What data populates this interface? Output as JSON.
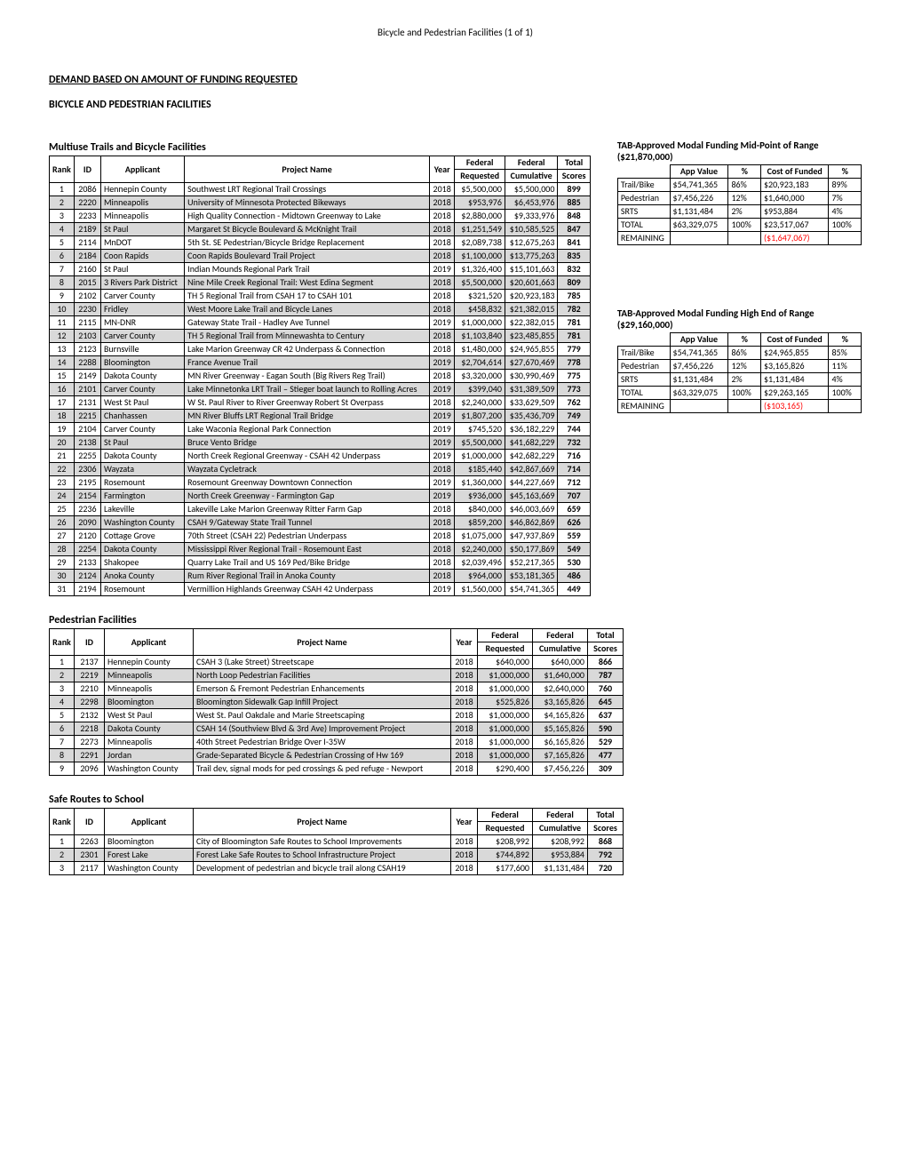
{
  "header": "Bicycle and Pedestrian Facilities (1 of 1)",
  "section_title": "DEMAND BASED ON AMOUNT OF FUNDING REQUESTED",
  "sub_title": "BICYCLE AND PEDESTRIAN FACILITIES",
  "columns": {
    "rank": "Rank",
    "id": "ID",
    "applicant": "Applicant",
    "project": "Project Name",
    "year": "Year",
    "fed_req": "Federal",
    "fed_req2": "Requested",
    "fed_cum": "Federal",
    "fed_cum2": "Cumulative",
    "scores": "Total",
    "scores2": "Scores"
  },
  "tables": {
    "multiuse": {
      "caption": "Multiuse Trails and Bicycle Facilities",
      "rows": [
        [
          "1",
          "2086",
          "Hennepin County",
          "Southwest LRT Regional Trail Crossings",
          "2018",
          "$5,500,000",
          "$5,500,000",
          "899"
        ],
        [
          "2",
          "2220",
          "Minneapolis",
          "University of Minnesota Protected Bikeways",
          "2018",
          "$953,976",
          "$6,453,976",
          "885"
        ],
        [
          "3",
          "2233",
          "Minneapolis",
          "High Quality Connection - Midtown Greenway to Lake",
          "2018",
          "$2,880,000",
          "$9,333,976",
          "848"
        ],
        [
          "4",
          "2189",
          "St Paul",
          "Margaret St Bicycle Boulevard & McKnight Trail",
          "2018",
          "$1,251,549",
          "$10,585,525",
          "847"
        ],
        [
          "5",
          "2114",
          "MnDOT",
          "5th St. SE Pedestrian/Bicycle Bridge Replacement",
          "2018",
          "$2,089,738",
          "$12,675,263",
          "841"
        ],
        [
          "6",
          "2184",
          "Coon Rapids",
          "Coon Rapids Boulevard Trail Project",
          "2018",
          "$1,100,000",
          "$13,775,263",
          "835"
        ],
        [
          "7",
          "2160",
          "St Paul",
          "Indian Mounds Regional Park Trail",
          "2019",
          "$1,326,400",
          "$15,101,663",
          "832"
        ],
        [
          "8",
          "2015",
          "3 Rivers Park District",
          "Nine Mile Creek Regional Trail: West Edina Segment",
          "2018",
          "$5,500,000",
          "$20,601,663",
          "809"
        ],
        [
          "9",
          "2102",
          "Carver County",
          "TH 5 Regional Trail from CSAH 17 to CSAH 101",
          "2018",
          "$321,520",
          "$20,923,183",
          "785"
        ],
        [
          "10",
          "2230",
          "Fridley",
          "West Moore Lake Trail and Bicycle Lanes",
          "2018",
          "$458,832",
          "$21,382,015",
          "782"
        ],
        [
          "11",
          "2115",
          "MN-DNR",
          "Gateway State Trail - Hadley Ave Tunnel",
          "2019",
          "$1,000,000",
          "$22,382,015",
          "781"
        ],
        [
          "12",
          "2103",
          "Carver County",
          "TH 5 Regional Trail from Minnewashta to Century",
          "2018",
          "$1,103,840",
          "$23,485,855",
          "781"
        ],
        [
          "13",
          "2123",
          "Burnsville",
          "Lake Marion Greenway CR 42 Underpass & Connection",
          "2018",
          "$1,480,000",
          "$24,965,855",
          "779"
        ],
        [
          "14",
          "2288",
          "Bloomington",
          "France Avenue Trail",
          "2019",
          "$2,704,614",
          "$27,670,469",
          "778"
        ],
        [
          "15",
          "2149",
          "Dakota County",
          "MN River Greenway - Eagan South (Big Rivers Reg Trail)",
          "2018",
          "$3,320,000",
          "$30,990,469",
          "775"
        ],
        [
          "16",
          "2101",
          "Carver County",
          "Lake Minnetonka LRT Trail – Stieger boat launch to Rolling Acres",
          "2019",
          "$399,040",
          "$31,389,509",
          "773"
        ],
        [
          "17",
          "2131",
          "West St Paul",
          "W St. Paul River to River Greenway Robert St Overpass",
          "2018",
          "$2,240,000",
          "$33,629,509",
          "762"
        ],
        [
          "18",
          "2215",
          "Chanhassen",
          "MN River Bluffs LRT Regional Trail Bridge",
          "2019",
          "$1,807,200",
          "$35,436,709",
          "749"
        ],
        [
          "19",
          "2104",
          "Carver County",
          "Lake Waconia Regional Park Connection",
          "2019",
          "$745,520",
          "$36,182,229",
          "744"
        ],
        [
          "20",
          "2138",
          "St Paul",
          "Bruce Vento Bridge",
          "2019",
          "$5,500,000",
          "$41,682,229",
          "732"
        ],
        [
          "21",
          "2255",
          "Dakota County",
          "North Creek Regional Greenway - CSAH 42 Underpass",
          "2019",
          "$1,000,000",
          "$42,682,229",
          "716"
        ],
        [
          "22",
          "2306",
          "Wayzata",
          "Wayzata Cycletrack",
          "2018",
          "$185,440",
          "$42,867,669",
          "714"
        ],
        [
          "23",
          "2195",
          "Rosemount",
          "Rosemount Greenway Downtown Connection",
          "2019",
          "$1,360,000",
          "$44,227,669",
          "712"
        ],
        [
          "24",
          "2154",
          "Farmington",
          "North Creek Greenway - Farmington Gap",
          "2019",
          "$936,000",
          "$45,163,669",
          "707"
        ],
        [
          "25",
          "2236",
          "Lakeville",
          "Lakeville Lake Marion Greenway Ritter Farm Gap",
          "2018",
          "$840,000",
          "$46,003,669",
          "659"
        ],
        [
          "26",
          "2090",
          "Washington County",
          "CSAH 9/Gateway State Trail Tunnel",
          "2018",
          "$859,200",
          "$46,862,869",
          "626"
        ],
        [
          "27",
          "2120",
          "Cottage Grove",
          "70th Street (CSAH 22) Pedestrian Underpass",
          "2018",
          "$1,075,000",
          "$47,937,869",
          "559"
        ],
        [
          "28",
          "2254",
          "Dakota County",
          "Mississippi River Regional Trail - Rosemount East",
          "2018",
          "$2,240,000",
          "$50,177,869",
          "549"
        ],
        [
          "29",
          "2133",
          "Shakopee",
          "Quarry Lake Trail and US 169 Ped/Bike Bridge",
          "2018",
          "$2,039,496",
          "$52,217,365",
          "530"
        ],
        [
          "30",
          "2124",
          "Anoka County",
          "Rum River Regional Trail in Anoka County",
          "2018",
          "$964,000",
          "$53,181,365",
          "486"
        ],
        [
          "31",
          "2194",
          "Rosemount",
          "Vermillion Highlands Greenway CSAH 42 Underpass",
          "2019",
          "$1,560,000",
          "$54,741,365",
          "449"
        ]
      ]
    },
    "pedestrian": {
      "caption": "Pedestrian Facilities",
      "rows": [
        [
          "1",
          "2137",
          "Hennepin County",
          "CSAH 3 (Lake Street) Streetscape",
          "2018",
          "$640,000",
          "$640,000",
          "866"
        ],
        [
          "2",
          "2219",
          "Minneapolis",
          "North Loop Pedestrian Facilities",
          "2018",
          "$1,000,000",
          "$1,640,000",
          "787"
        ],
        [
          "3",
          "2210",
          "Minneapolis",
          "Emerson & Fremont Pedestrian Enhancements",
          "2018",
          "$1,000,000",
          "$2,640,000",
          "760"
        ],
        [
          "4",
          "2298",
          "Bloomington",
          "Bloomington Sidewalk Gap Infill Project",
          "2018",
          "$525,826",
          "$3,165,826",
          "645"
        ],
        [
          "5",
          "2132",
          "West St Paul",
          "West St. Paul Oakdale and Marie Streetscaping",
          "2018",
          "$1,000,000",
          "$4,165,826",
          "637"
        ],
        [
          "6",
          "2218",
          "Dakota County",
          "CSAH 14 (Southview Blvd & 3rd Ave) Improvement Project",
          "2018",
          "$1,000,000",
          "$5,165,826",
          "590"
        ],
        [
          "7",
          "2273",
          "Minneapolis",
          "40th Street Pedestrian Bridge Over I-35W",
          "2018",
          "$1,000,000",
          "$6,165,826",
          "529"
        ],
        [
          "8",
          "2291",
          "Jordan",
          "Grade-Separated Bicycle & Pedestrian Crossing of Hw 169",
          "2018",
          "$1,000,000",
          "$7,165,826",
          "477"
        ],
        [
          "9",
          "2096",
          "Washington County",
          "Trail dev, signal mods for ped crossings & ped refuge - Newport",
          "2018",
          "$290,400",
          "$7,456,226",
          "309"
        ]
      ]
    },
    "srts": {
      "caption": "Safe Routes to School",
      "rows": [
        [
          "1",
          "2263",
          "Bloomington",
          "City of Bloomington Safe Routes to School Improvements",
          "2018",
          "$208,992",
          "$208,992",
          "868"
        ],
        [
          "2",
          "2301",
          "Forest Lake",
          "Forest Lake Safe Routes to School Infrastructure Project",
          "2018",
          "$744,892",
          "$953,884",
          "792"
        ],
        [
          "3",
          "2117",
          "Washington County",
          "Development of pedestrian and bicycle trail along CSAH19",
          "2018",
          "$177,600",
          "$1,131,484",
          "720"
        ]
      ]
    }
  },
  "summary_cols": {
    "app": "App Value",
    "pct": "%",
    "cost": "Cost of Funded",
    "pct2": "%"
  },
  "summary_mid": {
    "caption": "TAB-Approved Modal Funding Mid-Point of Range ($21,870,000)",
    "rows": [
      [
        "Trail/Bike",
        "$54,741,365",
        "86%",
        "$20,923,183",
        "89%",
        false
      ],
      [
        "Pedestrian",
        "$7,456,226",
        "12%",
        "$1,640,000",
        "7%",
        false
      ],
      [
        "SRTS",
        "$1,131,484",
        "2%",
        "$953,884",
        "4%",
        false
      ],
      [
        "TOTAL",
        "$63,329,075",
        "100%",
        "$23,517,067",
        "100%",
        false
      ],
      [
        "REMAINING",
        "",
        "",
        "($1,647,067)",
        "",
        true
      ]
    ]
  },
  "summary_high": {
    "caption": "TAB-Approved Modal Funding High End of Range ($29,160,000)",
    "rows": [
      [
        "Trail/Bike",
        "$54,741,365",
        "86%",
        "$24,965,855",
        "85%",
        false
      ],
      [
        "Pedestrian",
        "$7,456,226",
        "12%",
        "$3,165,826",
        "11%",
        false
      ],
      [
        "SRTS",
        "$1,131,484",
        "2%",
        "$1,131,484",
        "4%",
        false
      ],
      [
        "TOTAL",
        "$63,329,075",
        "100%",
        "$29,263,165",
        "100%",
        false
      ],
      [
        "REMAINING",
        "",
        "",
        "($103,165)",
        "",
        true
      ]
    ]
  }
}
